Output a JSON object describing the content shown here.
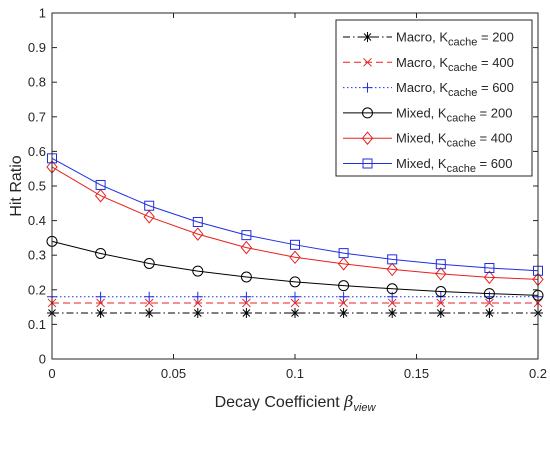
{
  "chart_data": {
    "type": "line",
    "xlabel": "Decay Coefficient",
    "xlabel_symbol": "β",
    "xlabel_subscript": "view",
    "ylabel": "Hit Ratio",
    "xlim": [
      0,
      0.2
    ],
    "ylim": [
      0,
      1
    ],
    "xticks": [
      0,
      0.05,
      0.1,
      0.15,
      0.2
    ],
    "xtick_labels": [
      "0",
      "0.05",
      "0.1",
      "0.15",
      "0.2"
    ],
    "yticks": [
      0,
      0.1,
      0.2,
      0.3,
      0.4,
      0.5,
      0.6,
      0.7,
      0.8,
      0.9,
      1
    ],
    "ytick_labels": [
      "0",
      "0.1",
      "0.2",
      "0.3",
      "0.4",
      "0.5",
      "0.6",
      "0.7",
      "0.8",
      "0.9",
      "1"
    ],
    "grid": false,
    "legend_position": "top-right",
    "x": [
      0,
      0.02,
      0.04,
      0.06,
      0.08,
      0.1,
      0.12,
      0.14,
      0.16,
      0.18,
      0.2
    ],
    "series": [
      {
        "legend_main": "Macro, K",
        "legend_sub": "cache",
        "legend_value": " = 200",
        "color": "#000000",
        "line_style": "dashdot",
        "marker": "asterisk",
        "values": [
          0.133,
          0.133,
          0.133,
          0.133,
          0.133,
          0.133,
          0.133,
          0.133,
          0.133,
          0.133,
          0.133
        ]
      },
      {
        "legend_main": "Macro, K",
        "legend_sub": "cache",
        "legend_value": " = 400",
        "color": "#e8201c",
        "line_style": "dashed",
        "marker": "x",
        "values": [
          0.162,
          0.162,
          0.162,
          0.162,
          0.162,
          0.162,
          0.162,
          0.162,
          0.162,
          0.162,
          0.162
        ]
      },
      {
        "legend_main": "Macro, K",
        "legend_sub": "cache",
        "legend_value": " = 600",
        "color": "#1f2fe0",
        "line_style": "dotted",
        "marker": "plus",
        "values": [
          0.18,
          0.18,
          0.18,
          0.18,
          0.18,
          0.18,
          0.18,
          0.18,
          0.18,
          0.18,
          0.18
        ]
      },
      {
        "legend_main": "Mixed, K",
        "legend_sub": "cache",
        "legend_value": " = 200",
        "color": "#000000",
        "line_style": "solid",
        "marker": "circle",
        "values": [
          0.34,
          0.305,
          0.276,
          0.254,
          0.237,
          0.223,
          0.212,
          0.203,
          0.195,
          0.189,
          0.184
        ]
      },
      {
        "legend_main": "Mixed, K",
        "legend_sub": "cache",
        "legend_value": " = 400",
        "color": "#e8201c",
        "line_style": "solid",
        "marker": "diamond",
        "values": [
          0.555,
          0.472,
          0.411,
          0.361,
          0.322,
          0.294,
          0.275,
          0.259,
          0.246,
          0.236,
          0.23
        ]
      },
      {
        "legend_main": "Mixed, K",
        "legend_sub": "cache",
        "legend_value": " = 600",
        "color": "#1f2fe0",
        "line_style": "solid",
        "marker": "square",
        "values": [
          0.58,
          0.503,
          0.443,
          0.396,
          0.358,
          0.33,
          0.306,
          0.288,
          0.274,
          0.263,
          0.255
        ]
      }
    ]
  }
}
